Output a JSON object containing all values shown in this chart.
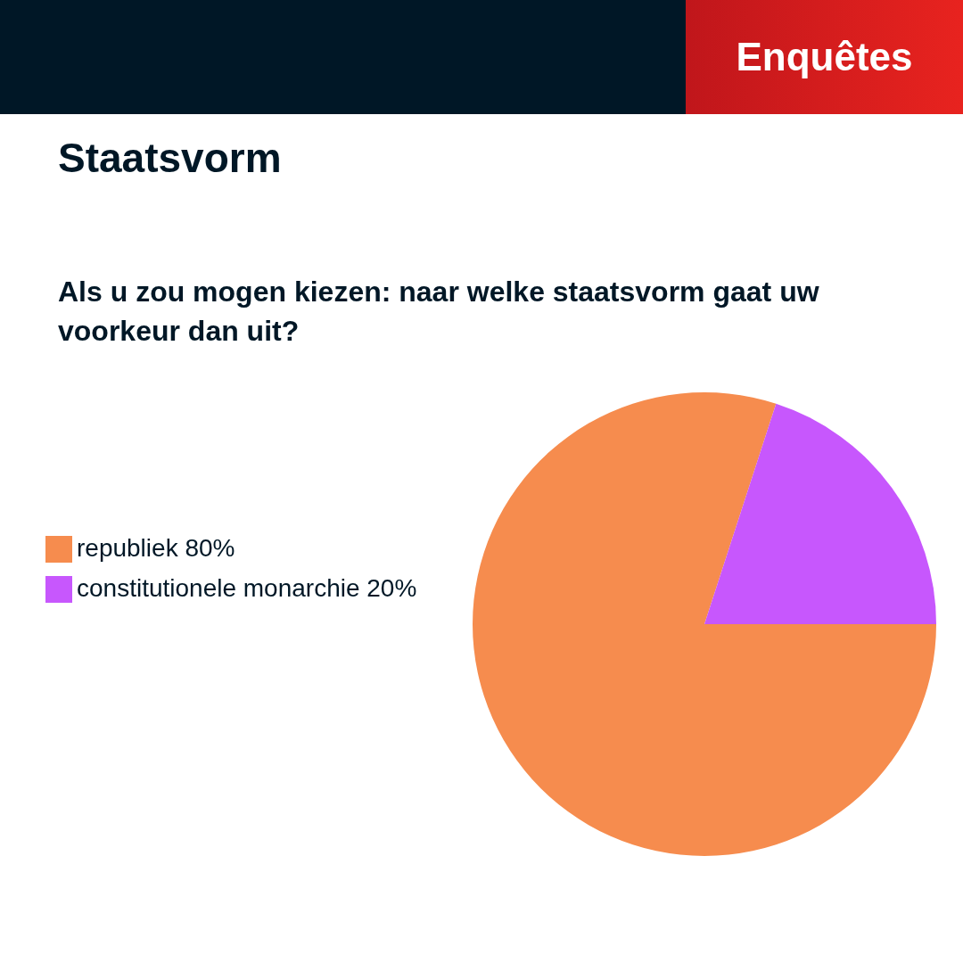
{
  "chart_data": {
    "type": "pie",
    "title": "Staatsvorm",
    "subtitle": "Als u zou mogen kiezen: naar welke staatsvorm gaat uw voorkeur dan uit?",
    "annotations": [
      "Enquêtes"
    ],
    "categories": [
      "republiek",
      "constitutionele monarchie"
    ],
    "values": [
      80,
      20
    ],
    "value_labels": [
      "80%",
      "20%"
    ],
    "colors": [
      "#f68c4e",
      "#c757fd"
    ],
    "legend": "left"
  }
}
